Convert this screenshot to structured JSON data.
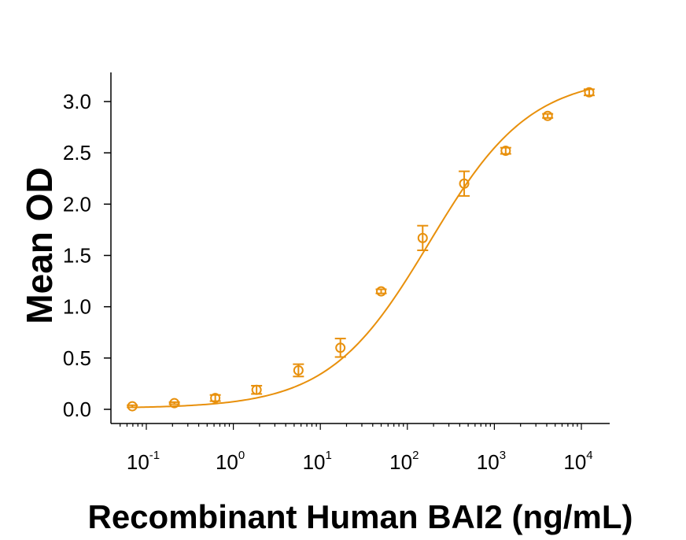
{
  "chart_data": {
    "type": "scatter",
    "title": "",
    "xlabel": "Recombinant Human BAI2 (ng/mL)",
    "ylabel": "Mean OD",
    "x_scale": "log",
    "xlim": [
      0.05,
      15000
    ],
    "ylim": [
      -0.1,
      3.3
    ],
    "yticks": [
      0.0,
      0.5,
      1.0,
      1.5,
      2.0,
      2.5,
      3.0
    ],
    "ytick_labels": [
      "0.0",
      "0.5",
      "1.0",
      "1.5",
      "2.0",
      "2.5",
      "3.0"
    ],
    "xticks": [
      {
        "base": "10",
        "exp": "-1",
        "value": 0.1
      },
      {
        "base": "10",
        "exp": "0",
        "value": 1
      },
      {
        "base": "10",
        "exp": "1",
        "value": 10
      },
      {
        "base": "10",
        "exp": "2",
        "value": 100
      },
      {
        "base": "10",
        "exp": "3",
        "value": 1000
      },
      {
        "base": "10",
        "exp": "4",
        "value": 10000
      }
    ],
    "color": "#E8900C",
    "points": [
      {
        "x": 0.069,
        "y": 0.03,
        "err": 0.01
      },
      {
        "x": 0.21,
        "y": 0.06,
        "err": 0.01
      },
      {
        "x": 0.62,
        "y": 0.11,
        "err": 0.03
      },
      {
        "x": 1.85,
        "y": 0.19,
        "err": 0.04
      },
      {
        "x": 5.6,
        "y": 0.38,
        "err": 0.06
      },
      {
        "x": 17,
        "y": 0.6,
        "err": 0.09
      },
      {
        "x": 50,
        "y": 1.15,
        "err": 0.02
      },
      {
        "x": 150,
        "y": 1.67,
        "err": 0.12
      },
      {
        "x": 450,
        "y": 2.2,
        "err": 0.12
      },
      {
        "x": 1350,
        "y": 2.52,
        "err": 0.03
      },
      {
        "x": 4100,
        "y": 2.86,
        "err": 0.02
      },
      {
        "x": 12300,
        "y": 3.09,
        "err": 0.03
      }
    ],
    "fit": {
      "model": "4PL",
      "bottom": 0.01,
      "top": 3.25,
      "ec50": 180,
      "hill": 0.75
    }
  }
}
